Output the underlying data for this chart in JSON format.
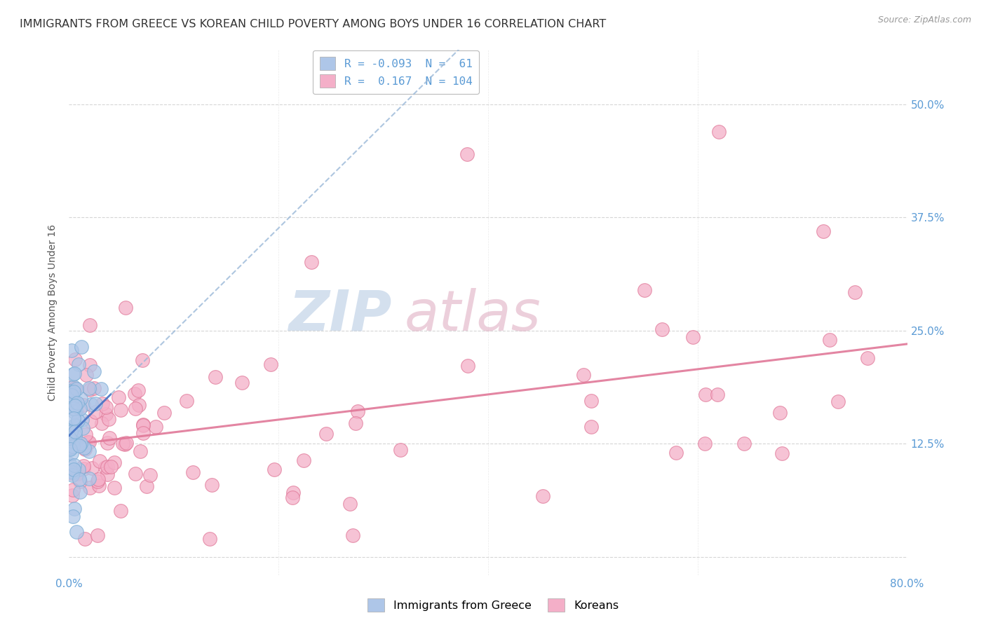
{
  "title": "IMMIGRANTS FROM GREECE VS KOREAN CHILD POVERTY AMONG BOYS UNDER 16 CORRELATION CHART",
  "source": "Source: ZipAtlas.com",
  "ylabel": "Child Poverty Among Boys Under 16",
  "yticks": [
    0.0,
    0.125,
    0.25,
    0.375,
    0.5
  ],
  "ytick_labels": [
    "",
    "12.5%",
    "25.0%",
    "37.5%",
    "50.0%"
  ],
  "xlim": [
    0.0,
    0.8
  ],
  "ylim": [
    -0.02,
    0.56
  ],
  "watermark": "ZIPAtlas",
  "watermark_color_zip": "#b0c8e0",
  "watermark_color_atlas": "#c8a0b8",
  "background_color": "#ffffff",
  "grid_color": "#cccccc",
  "axis_label_color": "#5b9bd5",
  "title_color": "#333333",
  "title_fontsize": 11.5,
  "axis_fontsize": 10,
  "tick_fontsize": 11,
  "greece_color": "#aec6e8",
  "greece_edge": "#7aadd4",
  "greece_trend_solid_color": "#4472c4",
  "greece_trend_dash_color": "#9ab8d8",
  "korea_color": "#f4afc8",
  "korea_edge": "#e07898",
  "korea_trend_color": "#e07898",
  "legend_box_color": "#ddeeff",
  "legend_pink_box": "#f4afc8"
}
